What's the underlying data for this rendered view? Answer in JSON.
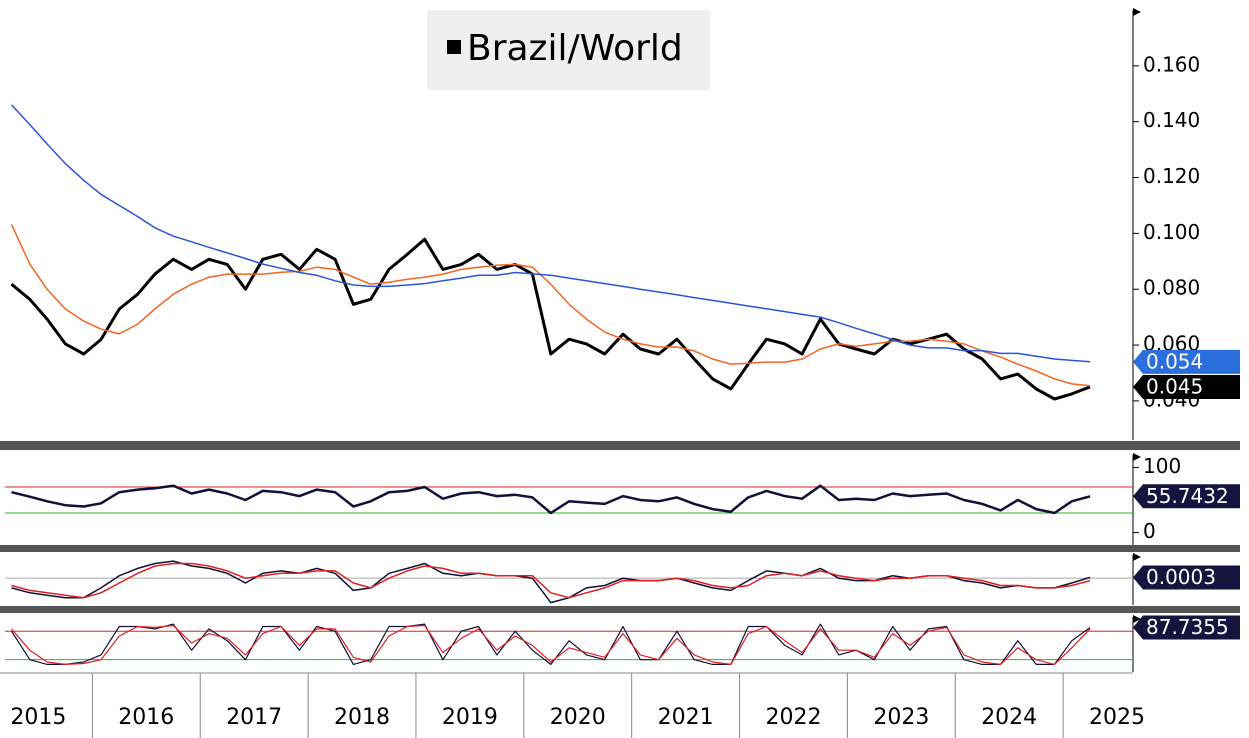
{
  "chart_data": [
    {
      "type": "line",
      "legend": true,
      "ylim": [
        0.026,
        0.18
      ],
      "yticks": [
        {
          "value": 0.04,
          "label": "0.040"
        },
        {
          "value": 0.06,
          "label": "0.060"
        },
        {
          "value": 0.08,
          "label": "0.080"
        },
        {
          "value": 0.1,
          "label": "0.100"
        },
        {
          "value": 0.12,
          "label": "0.120"
        },
        {
          "value": 0.14,
          "label": "0.140"
        },
        {
          "value": 0.16,
          "label": "0.160"
        }
      ],
      "xlim": [
        2015.19,
        2025.62
      ],
      "x": [
        2015.25,
        2015.42,
        2015.58,
        2015.75,
        2015.92,
        2016.08,
        2016.25,
        2016.42,
        2016.58,
        2016.75,
        2016.92,
        2017.08,
        2017.25,
        2017.42,
        2017.58,
        2017.75,
        2017.92,
        2018.08,
        2018.25,
        2018.42,
        2018.58,
        2018.75,
        2018.92,
        2019.08,
        2019.25,
        2019.42,
        2019.58,
        2019.75,
        2019.92,
        2020.08,
        2020.25,
        2020.42,
        2020.58,
        2020.75,
        2020.92,
        2021.08,
        2021.25,
        2021.42,
        2021.58,
        2021.75,
        2021.92,
        2022.08,
        2022.25,
        2022.42,
        2022.58,
        2022.75,
        2022.92,
        2023.08,
        2023.25,
        2023.42,
        2023.58,
        2023.75,
        2023.92,
        2024.08,
        2024.25,
        2024.42,
        2024.58,
        2024.75,
        2024.92,
        2025.08,
        2025.25
      ],
      "series": [
        {
          "name": "Brazil/World",
          "color": "#000000",
          "width": 3,
          "tag": "#000000",
          "values": [
            0.0818,
            0.0764,
            0.0693,
            0.0604,
            0.0568,
            0.062,
            0.0729,
            0.0782,
            0.0854,
            0.0907,
            0.0871,
            0.0907,
            0.0889,
            0.08,
            0.0907,
            0.0925,
            0.0871,
            0.0943,
            0.0907,
            0.0746,
            0.0764,
            0.0871,
            0.0925,
            0.0979,
            0.0871,
            0.0889,
            0.0925,
            0.0871,
            0.0889,
            0.0854,
            0.0568,
            0.0621,
            0.0604,
            0.0568,
            0.0639,
            0.0586,
            0.0568,
            0.0621,
            0.055,
            0.0479,
            0.0443,
            0.0532,
            0.0621,
            0.0604,
            0.0568,
            0.0693,
            0.0604,
            0.0586,
            0.0568,
            0.0621,
            0.0604,
            0.0621,
            0.0639,
            0.0586,
            0.055,
            0.0479,
            0.0496,
            0.0443,
            0.0407,
            0.0425,
            0.045
          ]
        },
        {
          "color": "#f26522",
          "width": 1.5,
          "values": [
            0.1032,
            0.089,
            0.08,
            0.0729,
            0.0686,
            0.0657,
            0.064,
            0.0675,
            0.0729,
            0.0782,
            0.0818,
            0.0843,
            0.0854,
            0.0854,
            0.0854,
            0.0861,
            0.0864,
            0.0879,
            0.0871,
            0.0843,
            0.0818,
            0.0825,
            0.0836,
            0.0843,
            0.0854,
            0.0871,
            0.0879,
            0.0886,
            0.0889,
            0.0879,
            0.0818,
            0.0746,
            0.0693,
            0.0646,
            0.0621,
            0.0604,
            0.0593,
            0.0593,
            0.0579,
            0.055,
            0.0532,
            0.0535,
            0.0539,
            0.0539,
            0.055,
            0.0586,
            0.0604,
            0.0596,
            0.0604,
            0.0614,
            0.0614,
            0.0621,
            0.0614,
            0.0604,
            0.0579,
            0.0557,
            0.0532,
            0.0507,
            0.0479,
            0.0461,
            0.0454
          ]
        },
        {
          "color": "#2a55d6",
          "width": 1.5,
          "tag": "#2a6fdb",
          "values": [
            0.146,
            0.139,
            0.132,
            0.125,
            0.119,
            0.114,
            0.11,
            0.106,
            0.102,
            0.099,
            0.097,
            0.095,
            0.093,
            0.091,
            0.089,
            0.0875,
            0.086,
            0.085,
            0.083,
            0.0815,
            0.081,
            0.081,
            0.0815,
            0.082,
            0.083,
            0.084,
            0.085,
            0.085,
            0.086,
            0.0855,
            0.085,
            0.084,
            0.083,
            0.082,
            0.081,
            0.08,
            0.079,
            0.078,
            0.077,
            0.076,
            0.075,
            0.074,
            0.073,
            0.072,
            0.071,
            0.07,
            0.068,
            0.066,
            0.064,
            0.062,
            0.06,
            0.059,
            0.059,
            0.058,
            0.058,
            0.057,
            0.057,
            0.056,
            0.055,
            0.0545,
            0.054
          ]
        }
      ]
    },
    {
      "type": "line",
      "ylim": [
        -19,
        119
      ],
      "yticks": [
        0,
        100
      ],
      "xlim": [
        2015.19,
        2025.62
      ],
      "levels": [
        {
          "value": 70,
          "color": "#e02020"
        },
        {
          "value": 30,
          "color": "#22bb22"
        }
      ],
      "x": [
        2015.25,
        2015.42,
        2015.58,
        2015.75,
        2015.92,
        2016.08,
        2016.25,
        2016.42,
        2016.58,
        2016.75,
        2016.92,
        2017.08,
        2017.25,
        2017.42,
        2017.58,
        2017.75,
        2017.92,
        2018.08,
        2018.25,
        2018.42,
        2018.58,
        2018.75,
        2018.92,
        2019.08,
        2019.25,
        2019.42,
        2019.58,
        2019.75,
        2019.92,
        2020.08,
        2020.25,
        2020.42,
        2020.58,
        2020.75,
        2020.92,
        2021.08,
        2021.25,
        2021.42,
        2021.58,
        2021.75,
        2021.92,
        2022.08,
        2022.25,
        2022.42,
        2022.58,
        2022.75,
        2022.92,
        2023.08,
        2023.25,
        2023.42,
        2023.58,
        2023.75,
        2023.92,
        2024.08,
        2024.25,
        2024.42,
        2024.58,
        2024.75,
        2024.92,
        2025.08,
        2025.25
      ],
      "series": [
        {
          "color": "#10103a",
          "width": 2.5,
          "tag": "#14143f",
          "values": [
            62,
            55,
            48,
            42,
            40,
            45,
            62,
            66,
            68,
            72,
            60,
            66,
            60,
            50,
            64,
            62,
            56,
            66,
            62,
            40,
            48,
            62,
            64,
            70,
            52,
            60,
            62,
            56,
            58,
            54,
            30,
            48,
            46,
            44,
            56,
            50,
            48,
            54,
            44,
            36,
            32,
            54,
            64,
            56,
            52,
            72,
            50,
            52,
            50,
            60,
            56,
            58,
            60,
            50,
            44,
            34,
            50,
            36,
            30,
            48,
            55.7432
          ]
        }
      ]
    },
    {
      "type": "line",
      "ylim": [
        -0.011,
        0.0095
      ],
      "xlim": [
        2015.19,
        2025.62
      ],
      "levels": [
        {
          "value": 0,
          "color": "#aaaaaa"
        }
      ],
      "x": [
        2015.25,
        2015.42,
        2015.58,
        2015.75,
        2015.92,
        2016.08,
        2016.25,
        2016.42,
        2016.58,
        2016.75,
        2016.92,
        2017.08,
        2017.25,
        2017.42,
        2017.58,
        2017.75,
        2017.92,
        2018.08,
        2018.25,
        2018.42,
        2018.58,
        2018.75,
        2018.92,
        2019.08,
        2019.25,
        2019.42,
        2019.58,
        2019.75,
        2019.92,
        2020.08,
        2020.25,
        2020.42,
        2020.58,
        2020.75,
        2020.92,
        2021.08,
        2021.25,
        2021.42,
        2021.58,
        2021.75,
        2021.92,
        2022.08,
        2022.25,
        2022.42,
        2022.58,
        2022.75,
        2022.92,
        2023.08,
        2023.25,
        2023.42,
        2023.58,
        2023.75,
        2023.92,
        2024.08,
        2024.25,
        2024.42,
        2024.58,
        2024.75,
        2024.92,
        2025.08,
        2025.25
      ],
      "series": [
        {
          "color": "#10103a",
          "width": 1.5,
          "tag": "#14143f",
          "values": [
            -0.004,
            -0.006,
            -0.007,
            -0.008,
            -0.008,
            -0.004,
            0.001,
            0.004,
            0.006,
            0.007,
            0.005,
            0.004,
            0.002,
            -0.002,
            0.002,
            0.003,
            0.002,
            0.004,
            0.002,
            -0.005,
            -0.004,
            0.002,
            0.004,
            0.006,
            0.002,
            0.001,
            0.002,
            0.001,
            0.001,
            0,
            -0.01,
            -0.008,
            -0.004,
            -0.003,
            0,
            -0.001,
            -0.001,
            0,
            -0.002,
            -0.004,
            -0.005,
            -0.001,
            0.003,
            0.002,
            0.001,
            0.004,
            0,
            -0.001,
            -0.001,
            0.001,
            0,
            0.001,
            0.001,
            -0.001,
            -0.002,
            -0.004,
            -0.003,
            -0.004,
            -0.004,
            -0.002,
            0.0003
          ]
        },
        {
          "color": "#e02020",
          "width": 1.5,
          "values": [
            -0.003,
            -0.005,
            -0.006,
            -0.007,
            -0.008,
            -0.006,
            -0.002,
            0.002,
            0.005,
            0.006,
            0.006,
            0.005,
            0.003,
            0,
            0.001,
            0.002,
            0.002,
            0.003,
            0.003,
            -0.002,
            -0.004,
            0,
            0.003,
            0.005,
            0.004,
            0.002,
            0.002,
            0.001,
            0.001,
            0.001,
            -0.006,
            -0.008,
            -0.006,
            -0.004,
            -0.001,
            -0.001,
            -0.001,
            0,
            -0.001,
            -0.003,
            -0.004,
            -0.003,
            0.001,
            0.002,
            0.001,
            0.003,
            0.001,
            0,
            -0.001,
            0,
            0,
            0.001,
            0.001,
            0,
            -0.001,
            -0.003,
            -0.003,
            -0.004,
            -0.004,
            -0.003,
            -0.001
          ]
        }
      ]
    },
    {
      "type": "line",
      "ylim": [
        -6,
        110
      ],
      "xlim": [
        2015.19,
        2025.62
      ],
      "levels": [
        {
          "value": 80,
          "color": "#e02020"
        },
        {
          "value": 20,
          "color": "#22bb22"
        }
      ],
      "xticks": [
        {
          "value": 2015.5,
          "label": "2015"
        },
        {
          "value": 2016.5,
          "label": "2016"
        },
        {
          "value": 2017.5,
          "label": "2017"
        },
        {
          "value": 2018.5,
          "label": "2018"
        },
        {
          "value": 2019.5,
          "label": "2019"
        },
        {
          "value": 2020.5,
          "label": "2020"
        },
        {
          "value": 2021.5,
          "label": "2021"
        },
        {
          "value": 2022.5,
          "label": "2022"
        },
        {
          "value": 2023.5,
          "label": "2023"
        },
        {
          "value": 2024.5,
          "label": "2024"
        },
        {
          "value": 2025.5,
          "label": "2025"
        }
      ],
      "x": [
        2015.25,
        2015.42,
        2015.58,
        2015.75,
        2015.92,
        2016.08,
        2016.25,
        2016.42,
        2016.58,
        2016.75,
        2016.92,
        2017.08,
        2017.25,
        2017.42,
        2017.58,
        2017.75,
        2017.92,
        2018.08,
        2018.25,
        2018.42,
        2018.58,
        2018.75,
        2018.92,
        2019.08,
        2019.25,
        2019.42,
        2019.58,
        2019.75,
        2019.92,
        2020.08,
        2020.25,
        2020.42,
        2020.58,
        2020.75,
        2020.92,
        2021.08,
        2021.25,
        2021.42,
        2021.58,
        2021.75,
        2021.92,
        2022.08,
        2022.25,
        2022.42,
        2022.58,
        2022.75,
        2022.92,
        2023.08,
        2023.25,
        2023.42,
        2023.58,
        2023.75,
        2023.92,
        2024.08,
        2024.25,
        2024.42,
        2024.58,
        2024.75,
        2024.92,
        2025.08,
        2025.25
      ],
      "series": [
        {
          "color": "#10103a",
          "width": 1.2,
          "tag": "#14143f",
          "values": [
            80,
            20,
            10,
            10,
            15,
            30,
            90,
            90,
            85,
            95,
            40,
            85,
            60,
            20,
            90,
            90,
            40,
            90,
            80,
            10,
            20,
            90,
            90,
            95,
            20,
            80,
            90,
            30,
            80,
            40,
            10,
            60,
            30,
            20,
            90,
            20,
            20,
            80,
            20,
            10,
            10,
            90,
            90,
            50,
            30,
            95,
            30,
            40,
            20,
            90,
            40,
            85,
            90,
            20,
            10,
            10,
            60,
            10,
            10,
            60,
            87.7355
          ]
        },
        {
          "color": "#e02020",
          "width": 1.2,
          "values": [
            85,
            40,
            15,
            10,
            12,
            20,
            70,
            90,
            88,
            92,
            55,
            75,
            65,
            30,
            75,
            90,
            50,
            85,
            85,
            25,
            15,
            70,
            90,
            92,
            35,
            65,
            85,
            40,
            70,
            50,
            15,
            45,
            35,
            25,
            75,
            30,
            20,
            65,
            30,
            15,
            10,
            75,
            90,
            60,
            35,
            85,
            40,
            40,
            25,
            75,
            50,
            80,
            88,
            30,
            15,
            10,
            45,
            20,
            10,
            45,
            85
          ]
        }
      ]
    }
  ]
}
